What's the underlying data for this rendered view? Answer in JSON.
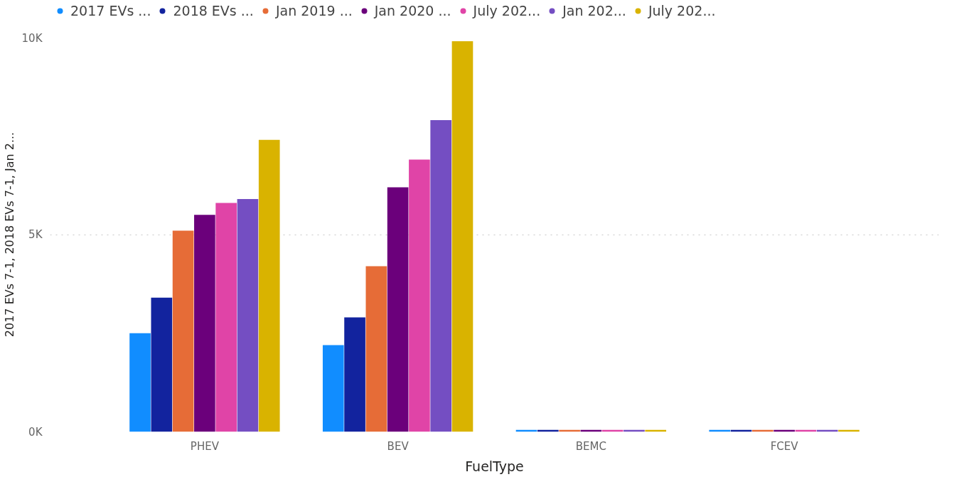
{
  "chart_data": {
    "type": "bar",
    "xlabel": "FuelType",
    "ylabel": "2017 EVs 7-1, 2018 EVs 7-1, Jan 2...",
    "categories": [
      "PHEV",
      "BEV",
      "BEMC",
      "FCEV"
    ],
    "series": [
      {
        "name": "2017 EVs ...",
        "color": "#118dff",
        "values": [
          2500,
          2200,
          50,
          50
        ]
      },
      {
        "name": "2018 EVs ...",
        "color": "#12239e",
        "values": [
          3400,
          2900,
          50,
          50
        ]
      },
      {
        "name": "Jan 2019 ...",
        "color": "#e66c37",
        "values": [
          5100,
          4200,
          50,
          50
        ]
      },
      {
        "name": "Jan 2020 ...",
        "color": "#6b007b",
        "values": [
          5500,
          6200,
          50,
          50
        ]
      },
      {
        "name": "July 202...",
        "color": "#e044a7",
        "values": [
          5800,
          6900,
          50,
          50
        ]
      },
      {
        "name": "Jan 202...",
        "color": "#744ec2",
        "values": [
          5900,
          7900,
          50,
          50
        ]
      },
      {
        "name": "July 202...",
        "color": "#d9b300",
        "values": [
          7400,
          9900,
          50,
          50
        ]
      }
    ],
    "ylim": [
      0,
      10000
    ],
    "yticks": [
      {
        "value": 0,
        "label": "0K"
      },
      {
        "value": 5000,
        "label": "5K"
      },
      {
        "value": 10000,
        "label": "10K"
      }
    ],
    "grid": "y",
    "legend": "top left"
  }
}
